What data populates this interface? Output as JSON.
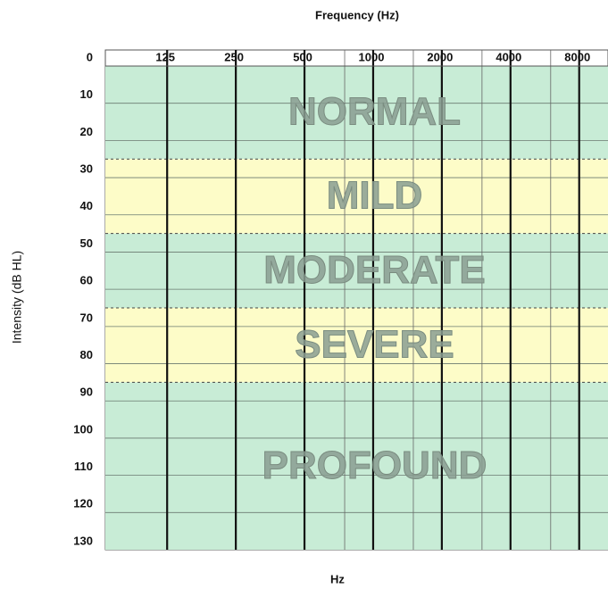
{
  "chart_data": {
    "type": "audiogram",
    "title": "Frequency (Hz)",
    "x_label": "Hz",
    "y_label": "Intensity (dB HL)",
    "x_log": true,
    "xlim": [
      67,
      10700
    ],
    "xticks": [
      125,
      250,
      500,
      1000,
      2000,
      4000,
      8000
    ],
    "xticks_minor": [
      750,
      1500,
      3000,
      6000
    ],
    "ylim": [
      0,
      130
    ],
    "yticks": [
      0,
      10,
      20,
      30,
      40,
      50,
      60,
      70,
      80,
      90,
      100,
      110,
      120,
      130
    ],
    "y_inverted": true,
    "grid": true,
    "bands": [
      {
        "name": "NORMAL",
        "from": 0,
        "to": 25,
        "color": "#c8ecd6"
      },
      {
        "name": "MILD",
        "from": 25,
        "to": 45,
        "color": "#fdfcc8"
      },
      {
        "name": "MODERATE",
        "from": 45,
        "to": 65,
        "color": "#c8ecd6"
      },
      {
        "name": "SEVERE",
        "from": 65,
        "to": 85,
        "color": "#fdfcc8"
      },
      {
        "name": "PROFOUND",
        "from": 85,
        "to": 130,
        "color": "#c8ecd6"
      }
    ]
  }
}
